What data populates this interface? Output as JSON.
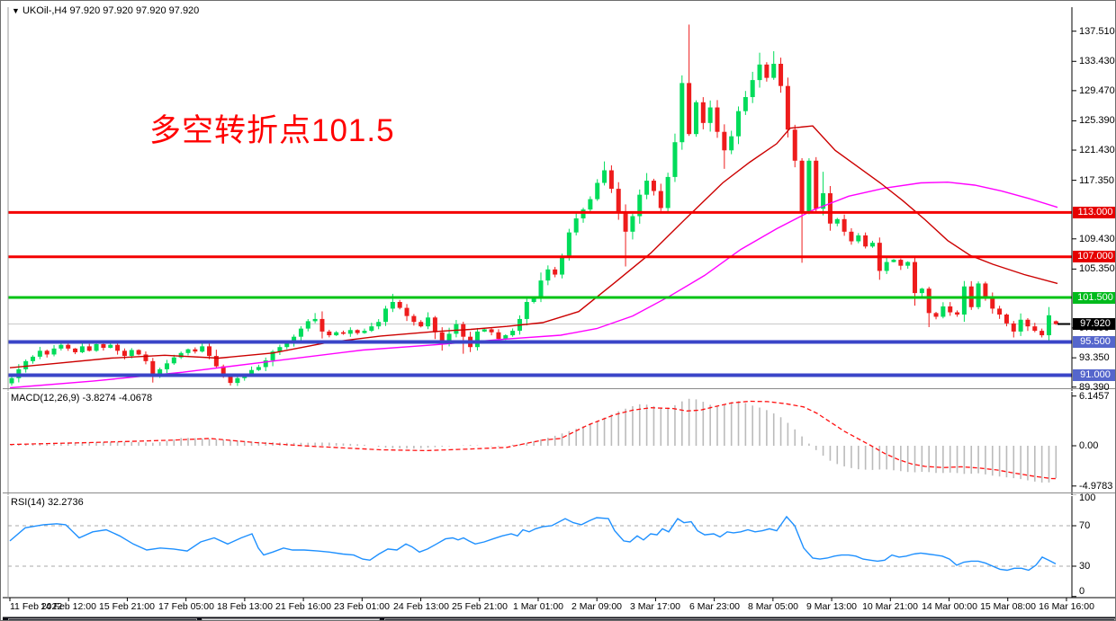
{
  "window": {
    "dropdown_icon": "▼",
    "symbol_line": "UKOil-,H4  97.920 97.920 97.920 97.920"
  },
  "annotation": {
    "text": "多空转折点101.5",
    "color": "#ff0000"
  },
  "colors": {
    "candle_up": "#00DC5A",
    "candle_down": "#EE1C1C",
    "ma_fast": "#CC0000",
    "ma_slow": "#FF00FF",
    "macd_hist": "#BBBBBB",
    "macd_signal": "#FF1111",
    "rsi_line": "#1E90FF",
    "grid_gray": "#C8C8C8",
    "tag_black": "#000000"
  },
  "main_chart": {
    "price_axis_ticks": [
      {
        "text": "137.510",
        "price": 137.51
      },
      {
        "text": "133.430",
        "price": 133.43
      },
      {
        "text": "129.470",
        "price": 129.47
      },
      {
        "text": "125.390",
        "price": 125.39
      },
      {
        "text": "121.430",
        "price": 121.43
      },
      {
        "text": "117.350",
        "price": 117.35
      },
      {
        "text": "109.430",
        "price": 109.43
      },
      {
        "text": "105.350",
        "price": 105.35
      },
      {
        "text": "97.390",
        "price": 97.39
      },
      {
        "text": "93.350",
        "price": 93.35
      },
      {
        "text": "89.390",
        "price": 89.39
      }
    ],
    "hlines": [
      {
        "price": 113.0,
        "color": "#F40000",
        "width": 3,
        "label": "113.000",
        "label_bg": "#E60000"
      },
      {
        "price": 107.0,
        "color": "#F40000",
        "width": 3,
        "label": "107.000",
        "label_bg": "#E60000"
      },
      {
        "price": 101.5,
        "color": "#00C314",
        "width": 3,
        "label": "101.500",
        "label_bg": "#00BB1C"
      },
      {
        "price": 95.5,
        "color": "#3A45C8",
        "width": 4,
        "label": "95.500",
        "label_bg": "#5566CC"
      },
      {
        "price": 91.0,
        "color": "#3A45C8",
        "width": 4,
        "label": "91.000",
        "label_bg": "#5566CC"
      }
    ],
    "current_price": {
      "text": "97.920",
      "price": 97.92,
      "label_bg": "#000000"
    },
    "candles": {
      "first_open": 89.9,
      "closes": [
        90.6,
        91.8,
        92.9,
        93.5,
        94.3,
        93.8,
        94.6,
        95.1,
        94.6,
        94.1,
        94.9,
        94.3,
        95.2,
        94.7,
        95.1,
        94.3,
        93.6,
        94.4,
        93.8,
        92.9,
        90.9,
        91.8,
        92.6,
        93.4,
        94.0,
        94.5,
        94.2,
        94.9,
        93.6,
        92.2,
        90.8,
        89.95,
        90.6,
        91.1,
        91.7,
        92.1,
        93.0,
        94.2,
        94.8,
        95.3,
        96.2,
        97.3,
        98.3,
        98.6,
        96.9,
        96.4,
        96.8,
        96.6,
        97.1,
        96.7,
        97.0,
        97.6,
        98.2,
        100.0,
        100.9,
        100.1,
        99.0,
        98.2,
        97.6,
        98.8,
        96.8,
        95.2,
        96.6,
        97.9,
        96.2,
        94.8,
        96.9,
        97.2,
        96.8,
        95.9,
        96.4,
        97.0,
        98.6,
        100.9,
        101.4,
        103.8,
        105.3,
        104.6,
        107.0,
        110.3,
        112.2,
        113.4,
        114.8,
        117.0,
        118.7,
        116.2,
        113.1,
        110.4,
        112.5,
        115.4,
        117.3,
        115.9,
        113.6,
        117.8,
        122.5,
        130.5,
        123.6,
        127.9,
        125.1,
        127.2,
        123.9,
        121.4,
        123.3,
        126.7,
        128.6,
        130.9,
        133.0,
        131.2,
        133.1,
        130.1,
        124.2,
        120.0,
        113.0,
        120.0,
        113.5,
        115.6,
        111.5,
        112.1,
        110.4,
        109.1,
        109.9,
        108.4,
        108.9,
        105.1,
        106.3,
        106.6,
        105.8,
        106.3,
        102.1,
        102.7,
        99.4,
        98.9,
        100.3,
        99.5,
        99.2,
        103.0,
        100.2,
        103.4,
        101.5,
        100.0,
        99.2,
        98.0,
        96.9,
        98.5,
        97.6,
        97.0,
        96.4,
        99.1,
        97.92
      ],
      "specials": {
        "0": {
          "o": 89.9
        },
        "20": {
          "l": 90.0
        },
        "31": {
          "l": 89.6
        },
        "43": {
          "h": 99.4
        },
        "54": {
          "h": 102.0
        },
        "64": {
          "l": 93.9
        },
        "84": {
          "h": 119.9
        },
        "87": {
          "l": 105.7
        },
        "96": {
          "h": 138.4
        },
        "101": {
          "l": 118.9
        },
        "106": {
          "h": 134.6
        },
        "108": {
          "h": 134.8
        },
        "112": {
          "l": 106.2
        },
        "115": {
          "h": 118.5
        },
        "123": {
          "l": 103.9
        },
        "128": {
          "l": 100.4
        },
        "130": {
          "l": 97.5
        },
        "142": {
          "l": 96.1
        },
        "146": {
          "l": 96.1
        },
        "148": {
          "o": 98.3,
          "h": 98.4,
          "l": 97.8
        }
      }
    },
    "ma_fast_points": [
      [
        8,
        92.0
      ],
      [
        60,
        92.6
      ],
      [
        120,
        93.3
      ],
      [
        180,
        93.7
      ],
      [
        240,
        93.3
      ],
      [
        300,
        94.0
      ],
      [
        360,
        95.4
      ],
      [
        420,
        96.3
      ],
      [
        480,
        96.9
      ],
      [
        520,
        97.2
      ],
      [
        560,
        97.6
      ],
      [
        600,
        98.1
      ],
      [
        640,
        99.6
      ],
      [
        680,
        103.5
      ],
      [
        720,
        107.5
      ],
      [
        760,
        112.3
      ],
      [
        800,
        117.0
      ],
      [
        830,
        119.8
      ],
      [
        860,
        122.3
      ],
      [
        875,
        124.4
      ],
      [
        900,
        124.7
      ],
      [
        925,
        121.4
      ],
      [
        950,
        119.2
      ],
      [
        975,
        117.0
      ],
      [
        1000,
        114.6
      ],
      [
        1025,
        112.0
      ],
      [
        1050,
        109.2
      ],
      [
        1075,
        107.2
      ],
      [
        1100,
        106.0
      ],
      [
        1135,
        104.6
      ],
      [
        1172,
        103.4
      ]
    ],
    "ma_slow_points": [
      [
        8,
        89.3
      ],
      [
        100,
        90.2
      ],
      [
        200,
        91.4
      ],
      [
        300,
        92.9
      ],
      [
        400,
        94.4
      ],
      [
        480,
        95.1
      ],
      [
        560,
        95.9
      ],
      [
        620,
        96.4
      ],
      [
        660,
        97.3
      ],
      [
        700,
        99.0
      ],
      [
        740,
        101.6
      ],
      [
        780,
        104.5
      ],
      [
        820,
        108.0
      ],
      [
        860,
        110.8
      ],
      [
        900,
        113.3
      ],
      [
        940,
        115.2
      ],
      [
        980,
        116.3
      ],
      [
        1020,
        117.0
      ],
      [
        1050,
        117.1
      ],
      [
        1080,
        116.7
      ],
      [
        1110,
        115.9
      ],
      [
        1140,
        114.9
      ],
      [
        1172,
        113.7
      ]
    ]
  },
  "macd_panel": {
    "label": "MACD(12,26,9) -3.8274 -4.0678",
    "axis_ticks": [
      {
        "text": "6.1457",
        "v": 6.1457
      },
      {
        "text": "0.00",
        "v": 0
      },
      {
        "text": "-4.9783",
        "v": -4.9783
      }
    ],
    "signal": [
      [
        8,
        0.15
      ],
      [
        100,
        0.4
      ],
      [
        190,
        0.7
      ],
      [
        230,
        0.9
      ],
      [
        280,
        0.4
      ],
      [
        340,
        -0.05
      ],
      [
        420,
        -0.5
      ],
      [
        470,
        -0.6
      ],
      [
        520,
        -0.4
      ],
      [
        560,
        -0.2
      ],
      [
        600,
        0.7
      ],
      [
        620,
        0.9
      ],
      [
        650,
        2.55
      ],
      [
        680,
        3.85
      ],
      [
        700,
        4.4
      ],
      [
        720,
        4.7
      ],
      [
        745,
        4.6
      ],
      [
        760,
        4.3
      ],
      [
        775,
        4.4
      ],
      [
        790,
        4.8
      ],
      [
        810,
        5.3
      ],
      [
        830,
        5.5
      ],
      [
        850,
        5.45
      ],
      [
        870,
        5.2
      ],
      [
        890,
        4.8
      ],
      [
        905,
        4.0
      ],
      [
        920,
        2.9
      ],
      [
        935,
        1.8
      ],
      [
        950,
        0.9
      ],
      [
        965,
        0.0
      ],
      [
        980,
        -0.95
      ],
      [
        995,
        -1.7
      ],
      [
        1010,
        -2.25
      ],
      [
        1025,
        -2.55
      ],
      [
        1045,
        -2.7
      ],
      [
        1065,
        -2.6
      ],
      [
        1085,
        -2.75
      ],
      [
        1105,
        -3.0
      ],
      [
        1125,
        -3.4
      ],
      [
        1145,
        -3.75
      ],
      [
        1165,
        -4.05
      ],
      [
        1172,
        -4.07
      ]
    ],
    "histogram": [
      [
        8,
        0.1
      ],
      [
        60,
        0.3
      ],
      [
        100,
        0.45
      ],
      [
        140,
        0.5
      ],
      [
        170,
        0.35
      ],
      [
        200,
        1.0
      ],
      [
        240,
        0.8
      ],
      [
        280,
        0.5
      ],
      [
        320,
        0.35
      ],
      [
        360,
        0.4
      ],
      [
        400,
        0.15
      ],
      [
        430,
        -0.3
      ],
      [
        460,
        -0.35
      ],
      [
        490,
        -0.1
      ],
      [
        520,
        0.1
      ],
      [
        550,
        -0.1
      ],
      [
        580,
        0.3
      ],
      [
        610,
        1.1
      ],
      [
        640,
        2.2
      ],
      [
        665,
        3.3
      ],
      [
        685,
        4.3
      ],
      [
        700,
        4.9
      ],
      [
        710,
        5.2
      ],
      [
        720,
        5.0
      ],
      [
        735,
        4.6
      ],
      [
        745,
        4.9
      ],
      [
        755,
        5.5
      ],
      [
        765,
        5.9
      ],
      [
        775,
        5.6
      ],
      [
        785,
        5.1
      ],
      [
        795,
        4.8
      ],
      [
        805,
        5.2
      ],
      [
        815,
        5.6
      ],
      [
        825,
        5.3
      ],
      [
        835,
        4.9
      ],
      [
        845,
        4.6
      ],
      [
        855,
        4.1
      ],
      [
        865,
        3.5
      ],
      [
        875,
        2.6
      ],
      [
        885,
        1.5
      ],
      [
        893,
        0.6
      ],
      [
        900,
        -0.2
      ],
      [
        910,
        -1.1
      ],
      [
        920,
        -1.9
      ],
      [
        930,
        -2.4
      ],
      [
        940,
        -2.7
      ],
      [
        950,
        -2.9
      ],
      [
        965,
        -3.0
      ],
      [
        980,
        -2.9
      ],
      [
        995,
        -3.1
      ],
      [
        1010,
        -3.3
      ],
      [
        1025,
        -3.2
      ],
      [
        1040,
        -3.4
      ],
      [
        1055,
        -3.3
      ],
      [
        1070,
        -3.5
      ],
      [
        1085,
        -3.4
      ],
      [
        1100,
        -3.7
      ],
      [
        1115,
        -3.9
      ],
      [
        1130,
        -4.1
      ],
      [
        1145,
        -4.4
      ],
      [
        1158,
        -4.6
      ],
      [
        1166,
        -4.5
      ],
      [
        1172,
        -3.83
      ]
    ]
  },
  "rsi_panel": {
    "label": "RSI(14) 32.2736",
    "axis_ticks": [
      {
        "text": "100",
        "v": 100
      },
      {
        "text": "70",
        "v": 70
      },
      {
        "text": "30",
        "v": 30
      },
      {
        "text": "0",
        "v": 0
      }
    ],
    "levels": [
      70,
      30
    ],
    "line": [
      [
        8,
        55
      ],
      [
        25,
        68
      ],
      [
        45,
        71
      ],
      [
        60,
        72
      ],
      [
        70,
        71
      ],
      [
        85,
        58
      ],
      [
        100,
        64
      ],
      [
        115,
        66
      ],
      [
        130,
        60
      ],
      [
        145,
        52
      ],
      [
        160,
        46
      ],
      [
        175,
        48
      ],
      [
        190,
        47
      ],
      [
        205,
        45
      ],
      [
        220,
        54
      ],
      [
        235,
        58
      ],
      [
        250,
        52
      ],
      [
        265,
        58
      ],
      [
        277,
        62
      ],
      [
        284,
        48
      ],
      [
        290,
        41
      ],
      [
        300,
        44
      ],
      [
        312,
        48
      ],
      [
        322,
        46
      ],
      [
        335,
        46
      ],
      [
        350,
        45
      ],
      [
        363,
        44
      ],
      [
        378,
        42
      ],
      [
        390,
        41
      ],
      [
        400,
        37
      ],
      [
        408,
        36
      ],
      [
        418,
        42
      ],
      [
        428,
        47
      ],
      [
        438,
        46
      ],
      [
        448,
        52
      ],
      [
        455,
        49
      ],
      [
        463,
        44
      ],
      [
        472,
        47
      ],
      [
        482,
        52
      ],
      [
        492,
        57
      ],
      [
        500,
        58
      ],
      [
        506,
        56
      ],
      [
        512,
        58
      ],
      [
        518,
        55
      ],
      [
        525,
        52
      ],
      [
        535,
        54
      ],
      [
        545,
        57
      ],
      [
        555,
        60
      ],
      [
        565,
        62
      ],
      [
        572,
        60
      ],
      [
        578,
        66
      ],
      [
        585,
        64
      ],
      [
        592,
        67
      ],
      [
        600,
        69
      ],
      [
        610,
        70
      ],
      [
        625,
        77
      ],
      [
        634,
        73
      ],
      [
        643,
        71
      ],
      [
        652,
        75
      ],
      [
        660,
        78
      ],
      [
        673,
        77
      ],
      [
        680,
        65
      ],
      [
        690,
        55
      ],
      [
        697,
        54
      ],
      [
        705,
        60
      ],
      [
        712,
        56
      ],
      [
        720,
        62
      ],
      [
        727,
        61
      ],
      [
        733,
        67
      ],
      [
        740,
        64
      ],
      [
        750,
        77
      ],
      [
        757,
        73
      ],
      [
        765,
        74
      ],
      [
        772,
        65
      ],
      [
        780,
        61
      ],
      [
        790,
        62
      ],
      [
        797,
        59
      ],
      [
        805,
        64
      ],
      [
        812,
        63
      ],
      [
        820,
        64
      ],
      [
        828,
        66
      ],
      [
        836,
        64
      ],
      [
        844,
        65
      ],
      [
        852,
        67
      ],
      [
        860,
        65
      ],
      [
        871,
        79
      ],
      [
        880,
        70
      ],
      [
        890,
        48
      ],
      [
        900,
        38
      ],
      [
        908,
        37
      ],
      [
        916,
        38
      ],
      [
        924,
        40
      ],
      [
        932,
        41
      ],
      [
        940,
        41
      ],
      [
        948,
        40
      ],
      [
        956,
        37
      ],
      [
        964,
        36
      ],
      [
        972,
        35
      ],
      [
        980,
        36
      ],
      [
        988,
        41
      ],
      [
        996,
        39
      ],
      [
        1004,
        40
      ],
      [
        1012,
        42
      ],
      [
        1020,
        43
      ],
      [
        1028,
        42
      ],
      [
        1036,
        41
      ],
      [
        1044,
        40
      ],
      [
        1052,
        37
      ],
      [
        1060,
        31
      ],
      [
        1068,
        34
      ],
      [
        1076,
        35
      ],
      [
        1084,
        35
      ],
      [
        1092,
        33
      ],
      [
        1100,
        30
      ],
      [
        1108,
        27
      ],
      [
        1116,
        26
      ],
      [
        1124,
        28
      ],
      [
        1132,
        28
      ],
      [
        1140,
        26
      ],
      [
        1148,
        31
      ],
      [
        1155,
        39
      ],
      [
        1162,
        36
      ],
      [
        1170,
        32.3
      ]
    ]
  },
  "time_axis": {
    "labels": [
      "11 Feb 2022",
      "14 Feb 12:00",
      "15 Feb 21:00",
      "17 Feb 05:00",
      "18 Feb 13:00",
      "21 Feb 16:00",
      "23 Feb 01:00",
      "24 Feb 13:00",
      "25 Feb 21:00",
      "1 Mar 01:00",
      "2 Mar 09:00",
      "3 Mar 17:00",
      "6 Mar 23:00",
      "8 Mar 05:00",
      "9 Mar 13:00",
      "10 Mar 21:00",
      "14 Mar 00:00",
      "15 Mar 08:00",
      "16 Mar 16:00"
    ]
  }
}
